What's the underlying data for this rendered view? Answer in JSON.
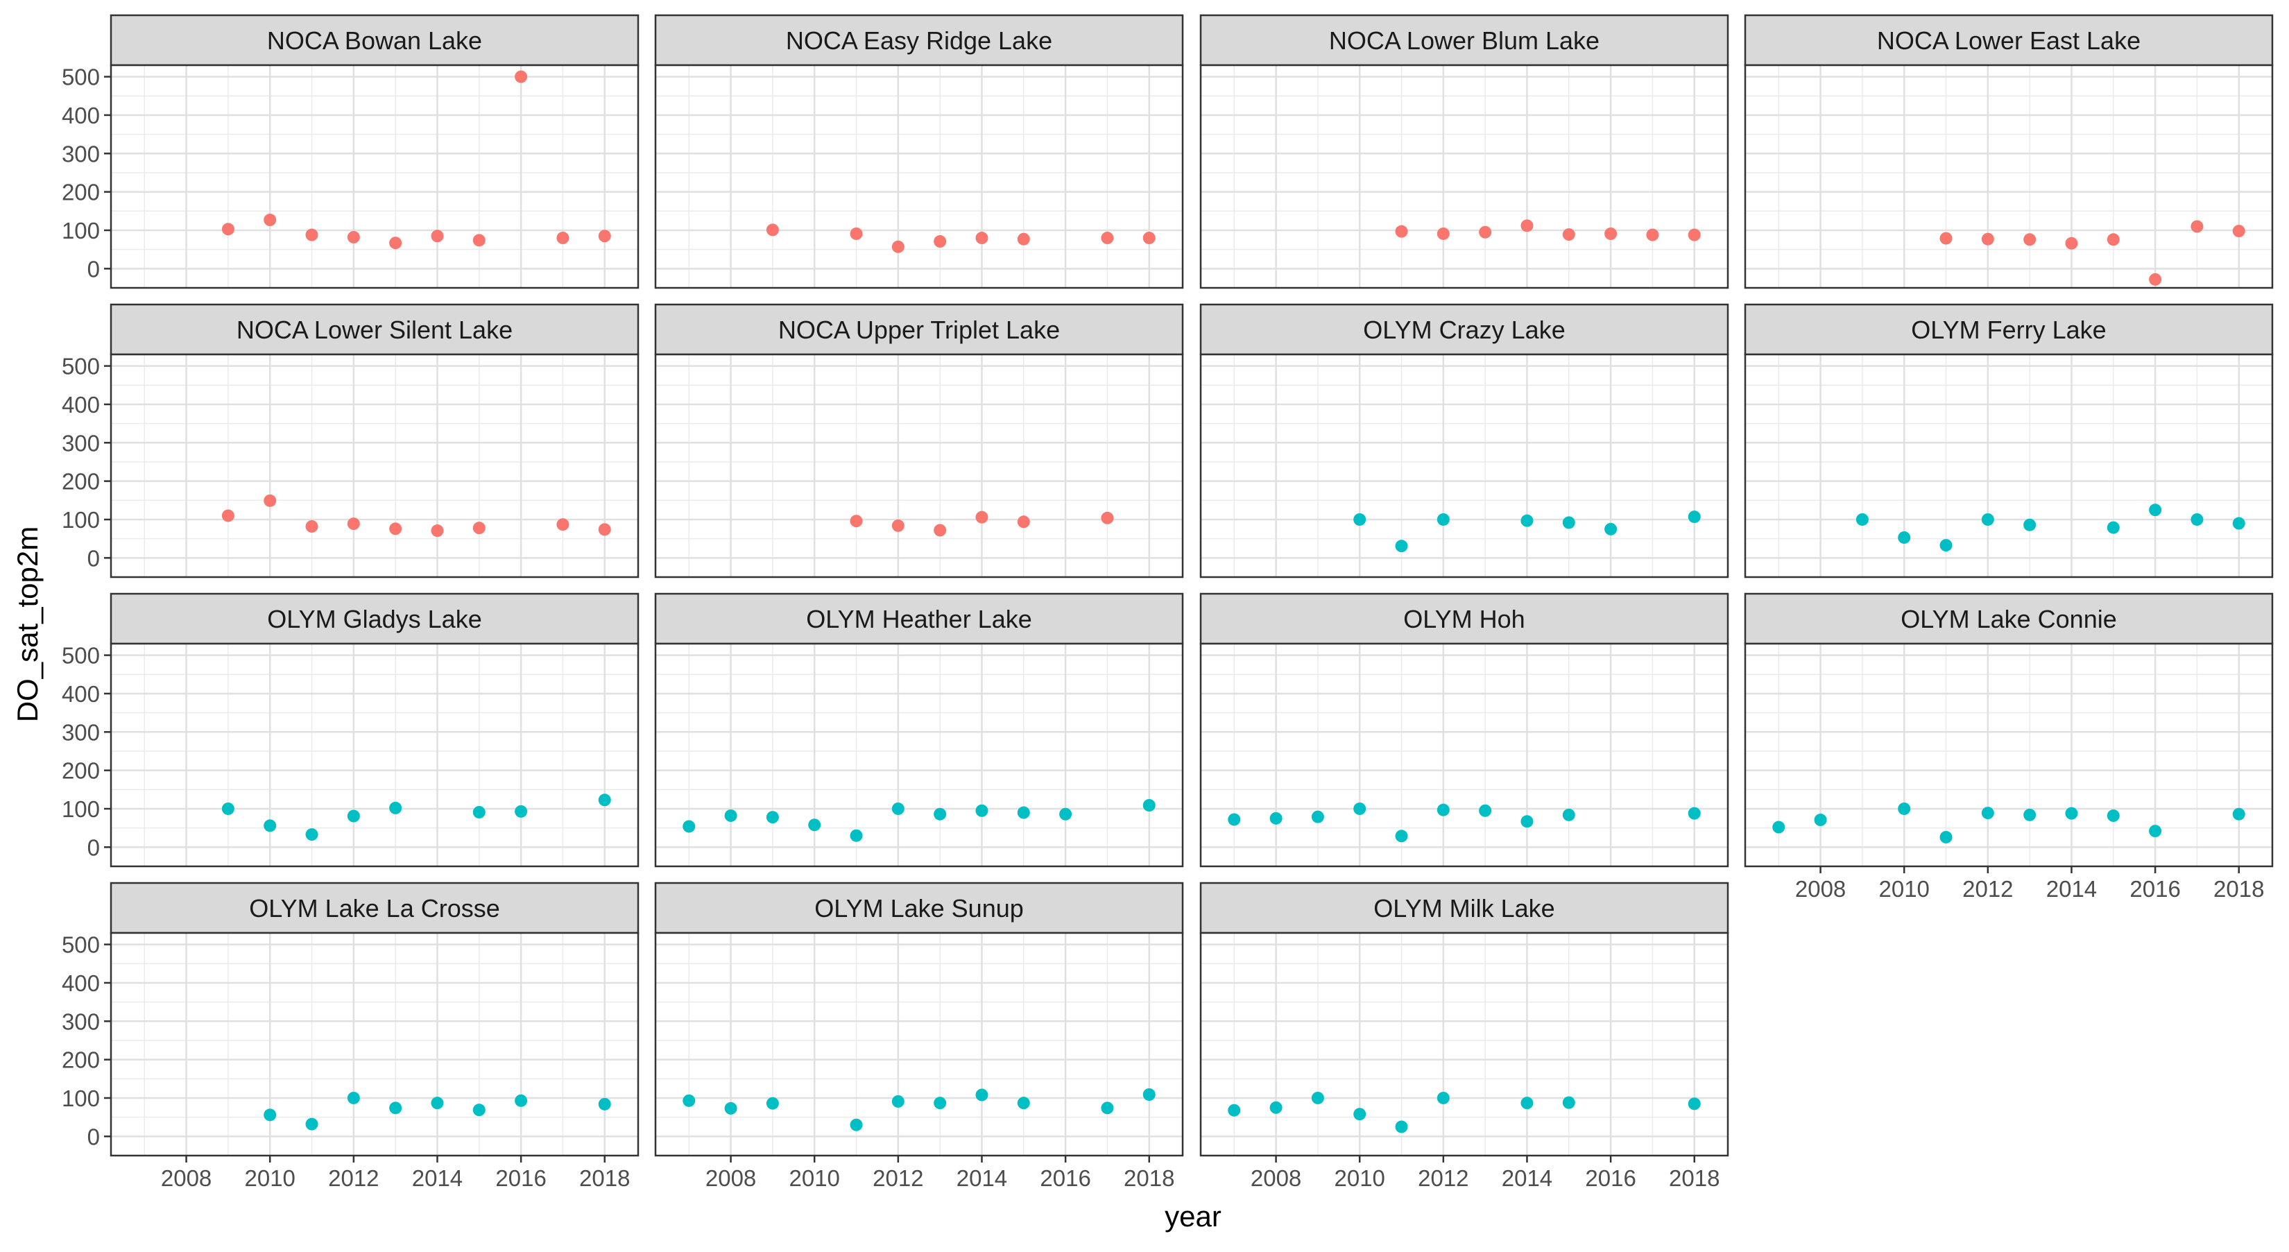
{
  "chart_data": {
    "type": "scatter",
    "layout": "facet_wrap",
    "xlabel": "year",
    "ylabel": "DO_sat_top2m",
    "xlim": [
      2006.2,
      2018.8
    ],
    "ylim": [
      -50,
      530
    ],
    "x_ticks": [
      2008,
      2010,
      2012,
      2014,
      2016,
      2018
    ],
    "y_ticks": [
      0,
      100,
      200,
      300,
      400,
      500
    ],
    "grid": true,
    "legend": "none",
    "colors": {
      "NOCA": "#F8766D",
      "OLYM": "#00BFC4"
    },
    "facets": [
      {
        "title": "NOCA Bowan Lake",
        "group": "NOCA",
        "points": [
          [
            2009,
            103
          ],
          [
            2010,
            127
          ],
          [
            2011,
            88
          ],
          [
            2012,
            82
          ],
          [
            2013,
            67
          ],
          [
            2014,
            85
          ],
          [
            2015,
            74
          ],
          [
            2016,
            500
          ],
          [
            2017,
            80
          ],
          [
            2018,
            85
          ]
        ]
      },
      {
        "title": "NOCA Easy Ridge Lake",
        "group": "NOCA",
        "points": [
          [
            2009,
            101
          ],
          [
            2011,
            91
          ],
          [
            2012,
            57
          ],
          [
            2013,
            71
          ],
          [
            2014,
            80
          ],
          [
            2015,
            77
          ],
          [
            2017,
            80
          ],
          [
            2018,
            80
          ]
        ]
      },
      {
        "title": "NOCA Lower Blum Lake",
        "group": "NOCA",
        "points": [
          [
            2011,
            97
          ],
          [
            2012,
            91
          ],
          [
            2013,
            95
          ],
          [
            2014,
            112
          ],
          [
            2015,
            89
          ],
          [
            2016,
            91
          ],
          [
            2017,
            88
          ],
          [
            2018,
            88
          ]
        ]
      },
      {
        "title": "NOCA Lower East Lake",
        "group": "NOCA",
        "points": [
          [
            2011,
            79
          ],
          [
            2012,
            77
          ],
          [
            2013,
            76
          ],
          [
            2014,
            66
          ],
          [
            2015,
            76
          ],
          [
            2016,
            -28
          ],
          [
            2017,
            110
          ],
          [
            2018,
            98
          ]
        ]
      },
      {
        "title": "NOCA Lower Silent Lake",
        "group": "NOCA",
        "points": [
          [
            2009,
            110
          ],
          [
            2010,
            149
          ],
          [
            2011,
            82
          ],
          [
            2012,
            89
          ],
          [
            2013,
            76
          ],
          [
            2014,
            71
          ],
          [
            2015,
            78
          ],
          [
            2017,
            87
          ],
          [
            2018,
            74
          ]
        ]
      },
      {
        "title": "NOCA Upper Triplet Lake",
        "group": "NOCA",
        "points": [
          [
            2011,
            96
          ],
          [
            2012,
            84
          ],
          [
            2013,
            72
          ],
          [
            2014,
            106
          ],
          [
            2015,
            94
          ],
          [
            2017,
            104
          ]
        ]
      },
      {
        "title": "OLYM Crazy Lake",
        "group": "OLYM",
        "points": [
          [
            2010,
            100
          ],
          [
            2011,
            31
          ],
          [
            2012,
            100
          ],
          [
            2014,
            97
          ],
          [
            2015,
            92
          ],
          [
            2016,
            75
          ],
          [
            2018,
            107
          ]
        ]
      },
      {
        "title": "OLYM Ferry Lake",
        "group": "OLYM",
        "points": [
          [
            2009,
            100
          ],
          [
            2010,
            53
          ],
          [
            2011,
            33
          ],
          [
            2012,
            100
          ],
          [
            2013,
            86
          ],
          [
            2015,
            79
          ],
          [
            2016,
            125
          ],
          [
            2017,
            100
          ],
          [
            2018,
            90
          ]
        ]
      },
      {
        "title": "OLYM Gladys Lake",
        "group": "OLYM",
        "points": [
          [
            2009,
            100
          ],
          [
            2010,
            56
          ],
          [
            2011,
            33
          ],
          [
            2012,
            81
          ],
          [
            2013,
            102
          ],
          [
            2015,
            91
          ],
          [
            2016,
            93
          ],
          [
            2018,
            123
          ]
        ]
      },
      {
        "title": "OLYM Heather Lake",
        "group": "OLYM",
        "points": [
          [
            2007,
            54
          ],
          [
            2008,
            82
          ],
          [
            2009,
            78
          ],
          [
            2010,
            58
          ],
          [
            2011,
            30
          ],
          [
            2012,
            100
          ],
          [
            2013,
            86
          ],
          [
            2014,
            95
          ],
          [
            2015,
            90
          ],
          [
            2016,
            86
          ],
          [
            2018,
            109
          ]
        ]
      },
      {
        "title": "OLYM Hoh",
        "group": "OLYM",
        "points": [
          [
            2007,
            72
          ],
          [
            2008,
            75
          ],
          [
            2009,
            79
          ],
          [
            2010,
            100
          ],
          [
            2011,
            29
          ],
          [
            2012,
            97
          ],
          [
            2013,
            95
          ],
          [
            2014,
            67
          ],
          [
            2015,
            84
          ],
          [
            2018,
            88
          ]
        ]
      },
      {
        "title": "OLYM Lake Connie",
        "group": "OLYM",
        "points": [
          [
            2007,
            52
          ],
          [
            2008,
            71
          ],
          [
            2010,
            100
          ],
          [
            2011,
            26
          ],
          [
            2012,
            89
          ],
          [
            2013,
            84
          ],
          [
            2014,
            88
          ],
          [
            2015,
            82
          ],
          [
            2016,
            42
          ],
          [
            2018,
            86
          ]
        ]
      },
      {
        "title": "OLYM Lake La Crosse",
        "group": "OLYM",
        "points": [
          [
            2010,
            56
          ],
          [
            2011,
            32
          ],
          [
            2012,
            100
          ],
          [
            2013,
            74
          ],
          [
            2014,
            87
          ],
          [
            2015,
            69
          ],
          [
            2016,
            93
          ],
          [
            2018,
            84
          ]
        ]
      },
      {
        "title": "OLYM Lake Sunup",
        "group": "OLYM",
        "points": [
          [
            2007,
            93
          ],
          [
            2008,
            73
          ],
          [
            2009,
            86
          ],
          [
            2011,
            30
          ],
          [
            2012,
            91
          ],
          [
            2013,
            87
          ],
          [
            2014,
            108
          ],
          [
            2015,
            87
          ],
          [
            2017,
            74
          ],
          [
            2018,
            109
          ]
        ]
      },
      {
        "title": "OLYM Milk Lake",
        "group": "OLYM",
        "points": [
          [
            2007,
            68
          ],
          [
            2008,
            75
          ],
          [
            2009,
            100
          ],
          [
            2010,
            58
          ],
          [
            2011,
            25
          ],
          [
            2012,
            100
          ],
          [
            2014,
            87
          ],
          [
            2015,
            88
          ],
          [
            2018,
            85
          ]
        ]
      }
    ]
  }
}
